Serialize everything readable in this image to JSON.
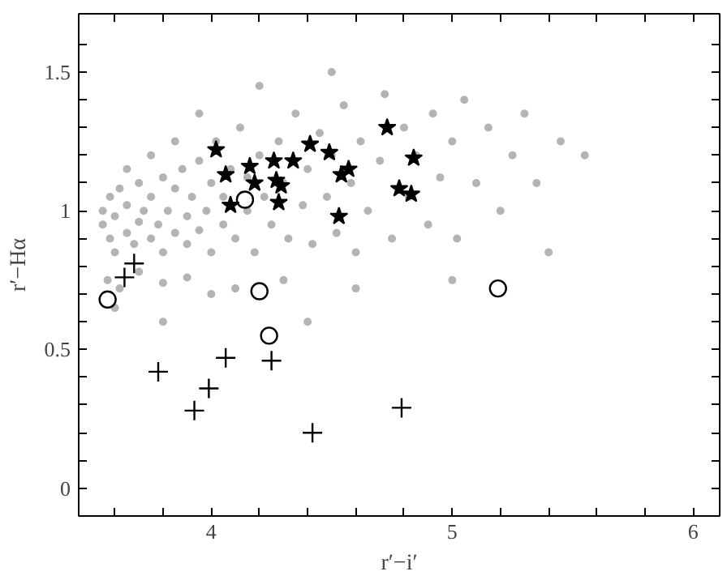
{
  "chart_data": {
    "type": "scatter",
    "xlabel": "r′−i′",
    "ylabel": "r′−Hα",
    "xlim": [
      3.45,
      6.11
    ],
    "ylim": [
      -0.1,
      1.71
    ],
    "xticks": [
      {
        "value": 3.6,
        "label": null
      },
      {
        "value": 3.8,
        "label": null
      },
      4,
      {
        "value": 4.2,
        "label": null
      },
      {
        "value": 4.4,
        "label": null
      },
      {
        "value": 4.6,
        "label": null
      },
      {
        "value": 4.8,
        "label": null
      },
      5,
      {
        "value": 5.2,
        "label": null
      },
      {
        "value": 5.4,
        "label": null
      },
      {
        "value": 5.6,
        "label": null
      },
      {
        "value": 5.8,
        "label": null
      },
      6
    ],
    "yticks": [
      0,
      {
        "value": 0.1,
        "label": null
      },
      {
        "value": 0.2,
        "label": null
      },
      {
        "value": 0.3,
        "label": null
      },
      {
        "value": 0.4,
        "label": null
      },
      0.5,
      {
        "value": 0.6,
        "label": null
      },
      {
        "value": 0.7,
        "label": null
      },
      {
        "value": 0.8,
        "label": null
      },
      {
        "value": 0.9,
        "label": null
      },
      1,
      {
        "value": 1.1,
        "label": null
      },
      {
        "value": 1.2,
        "label": null
      },
      {
        "value": 1.3,
        "label": null
      },
      {
        "value": 1.4,
        "label": null
      },
      1.5,
      {
        "value": 1.6,
        "label": null
      }
    ],
    "grid": false,
    "series": [
      {
        "color": "#b4b4b4",
        "marker": "circle",
        "x": [
          3.55,
          3.55,
          3.58,
          3.58,
          3.6,
          3.6,
          3.62,
          3.65,
          3.65,
          3.68,
          3.7,
          3.7,
          3.72,
          3.75,
          3.75,
          3.78,
          3.8,
          3.8,
          3.82,
          3.85,
          3.85,
          3.88,
          3.9,
          3.9,
          3.92,
          3.95,
          3.95,
          3.98,
          4.0,
          4.0,
          4.02,
          4.05,
          4.05,
          4.08,
          4.1,
          4.12,
          4.15,
          4.15,
          4.18,
          4.2,
          4.22,
          4.25,
          4.28,
          4.3,
          4.32,
          4.35,
          4.38,
          4.4,
          4.42,
          4.45,
          4.48,
          4.5,
          4.52,
          4.55,
          4.58,
          4.6,
          4.62,
          4.65,
          4.7,
          4.72,
          4.75,
          4.8,
          4.82,
          4.85,
          4.9,
          4.92,
          4.95,
          5.0,
          5.02,
          5.05,
          5.1,
          5.15,
          5.2,
          5.25,
          5.3,
          5.35,
          5.45,
          5.55,
          3.57,
          3.62,
          3.7,
          3.8,
          3.9,
          4.0,
          4.1,
          3.75,
          3.85,
          3.65,
          3.6,
          4.3,
          4.6,
          5.0,
          4.2,
          4.5,
          3.95,
          5.4,
          4.4,
          3.8
        ],
        "values": [
          0.95,
          1.0,
          0.9,
          1.05,
          0.85,
          0.98,
          1.08,
          0.92,
          1.02,
          0.88,
          0.96,
          1.1,
          1.0,
          0.9,
          1.05,
          0.95,
          1.12,
          0.85,
          1.0,
          0.92,
          1.08,
          1.15,
          0.98,
          0.88,
          1.05,
          1.18,
          0.93,
          1.0,
          1.1,
          0.85,
          1.25,
          0.95,
          1.05,
          1.15,
          0.9,
          1.3,
          1.0,
          1.12,
          0.85,
          1.2,
          1.05,
          0.95,
          1.25,
          1.1,
          0.9,
          1.35,
          1.02,
          1.15,
          0.88,
          1.28,
          1.05,
          1.2,
          0.92,
          1.38,
          1.1,
          0.85,
          1.25,
          1.0,
          1.18,
          1.42,
          0.9,
          1.3,
          1.05,
          1.2,
          0.95,
          1.35,
          1.12,
          1.25,
          0.9,
          1.4,
          1.1,
          1.3,
          1.0,
          1.2,
          1.35,
          1.1,
          1.25,
          1.2,
          0.75,
          0.72,
          0.78,
          0.74,
          0.76,
          0.7,
          0.72,
          1.2,
          1.25,
          1.15,
          0.65,
          0.75,
          0.72,
          0.75,
          1.45,
          1.5,
          1.35,
          0.85,
          0.6,
          0.6
        ]
      },
      {
        "color": "#000000",
        "marker": "star",
        "x": [
          4.02,
          4.06,
          4.08,
          4.16,
          4.18,
          4.26,
          4.27,
          4.29,
          4.28,
          4.34,
          4.41,
          4.49,
          4.54,
          4.57,
          4.53,
          4.73,
          4.78,
          4.84,
          4.83
        ],
        "values": [
          1.22,
          1.13,
          1.02,
          1.16,
          1.1,
          1.18,
          1.11,
          1.09,
          1.03,
          1.18,
          1.24,
          1.21,
          1.13,
          1.15,
          0.98,
          1.3,
          1.08,
          1.19,
          1.06
        ]
      },
      {
        "color": "#000000",
        "marker": "circle",
        "x": [
          3.57,
          4.14,
          4.2,
          4.24,
          5.19
        ],
        "values": [
          0.68,
          1.04,
          0.71,
          0.55,
          0.72
        ]
      },
      {
        "color": "#000000",
        "marker": "cross",
        "x": [
          3.64,
          3.68,
          3.78,
          3.93,
          3.99,
          4.06,
          4.25,
          4.42,
          4.79
        ],
        "values": [
          0.76,
          0.81,
          0.42,
          0.28,
          0.36,
          0.47,
          0.46,
          0.2,
          0.29
        ]
      }
    ]
  }
}
